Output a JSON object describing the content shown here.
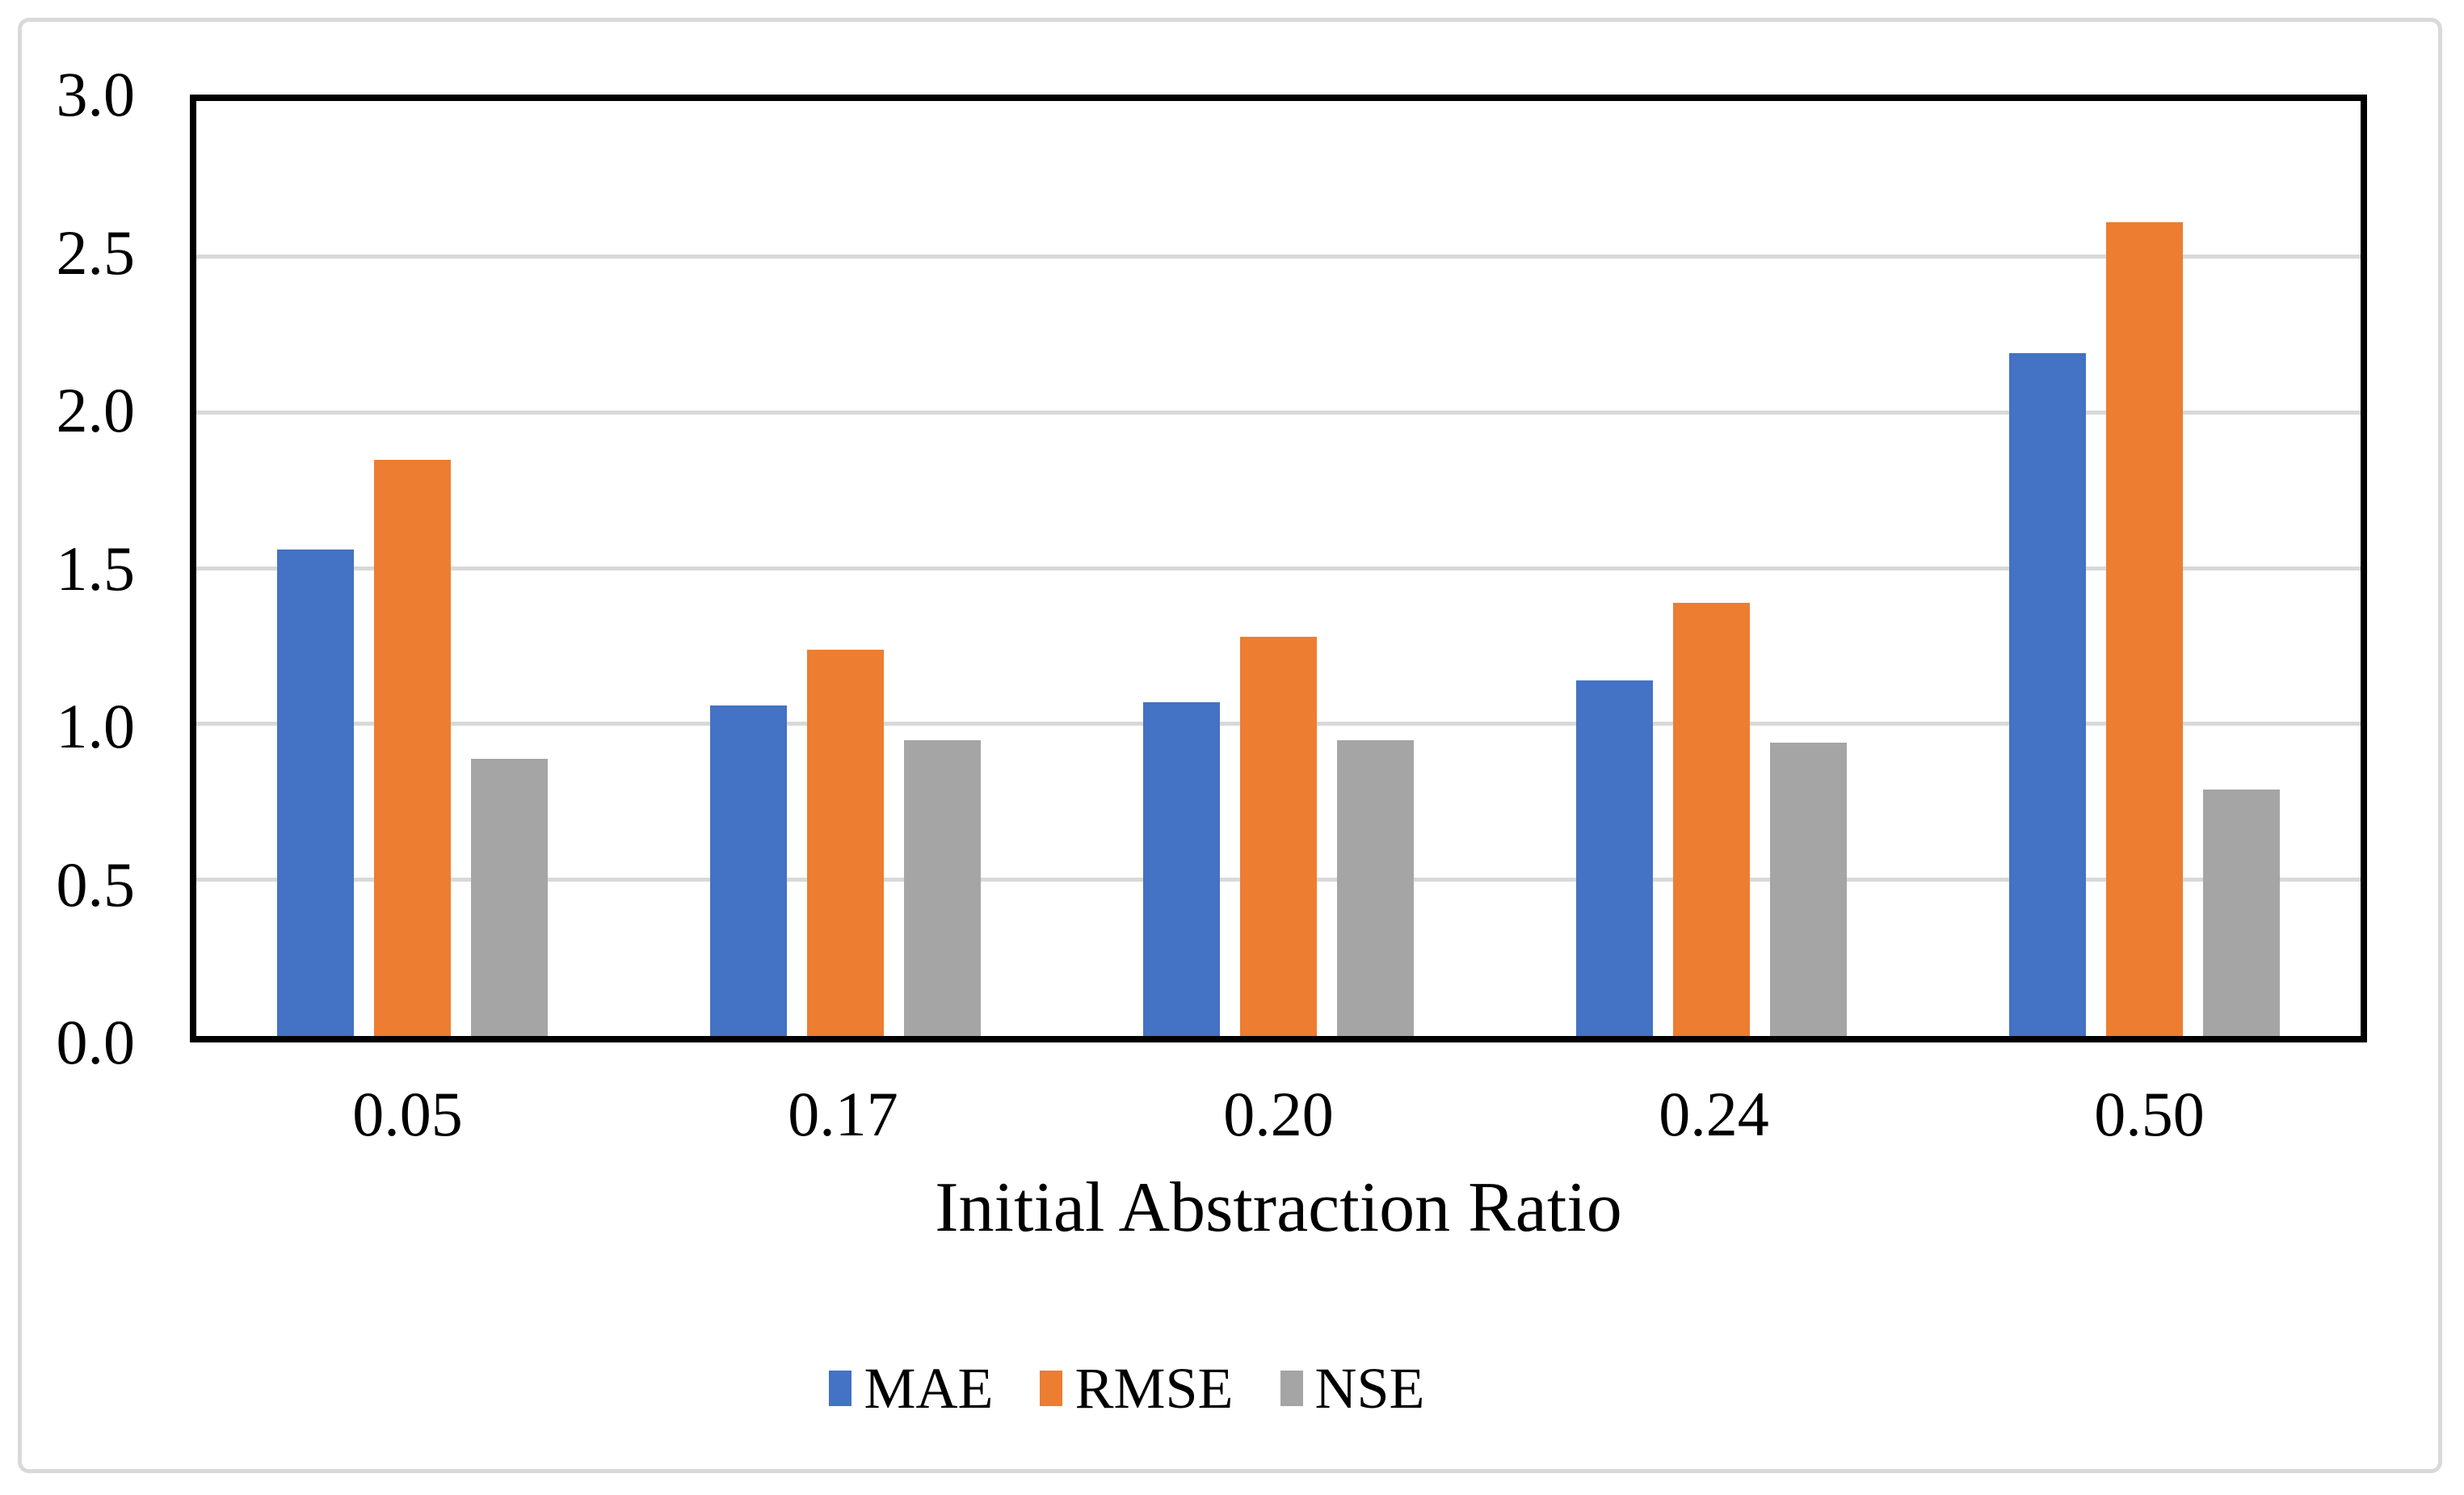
{
  "chart_data": {
    "type": "bar",
    "title": "",
    "xlabel": "Initial Abstraction Ratio",
    "ylabel": "",
    "categories": [
      "0.05",
      "0.17",
      "0.20",
      "0.24",
      "0.50"
    ],
    "series": [
      {
        "name": "MAE",
        "color": "#4472C4",
        "values": [
          1.56,
          1.06,
          1.07,
          1.14,
          2.19
        ]
      },
      {
        "name": "RMSE",
        "color": "#ED7D31",
        "values": [
          1.85,
          1.24,
          1.28,
          1.39,
          2.61
        ]
      },
      {
        "name": "NSE",
        "color": "#A5A5A5",
        "values": [
          0.89,
          0.95,
          0.95,
          0.94,
          0.79
        ]
      }
    ],
    "ylim": [
      0,
      3
    ],
    "ytick_step": 0.5,
    "yticks": [
      "3.0",
      "2.5",
      "2.0",
      "1.5",
      "1.0",
      "0.5",
      "0.0"
    ],
    "grid": true,
    "gridline_values": [
      0.5,
      1.0,
      1.5,
      2.0,
      2.5
    ],
    "legend_position": "bottom",
    "legend_labels": [
      "MAE",
      "RMSE",
      "NSE"
    ]
  },
  "colors": {
    "background": "#FFFFFF",
    "frame_border": "#D9D9D9",
    "plot_border": "#000000",
    "gridline": "#D9D9D9",
    "text": "#000000",
    "series_blue": "#4472C4",
    "series_orange": "#ED7D31",
    "series_gray": "#A5A5A5"
  }
}
